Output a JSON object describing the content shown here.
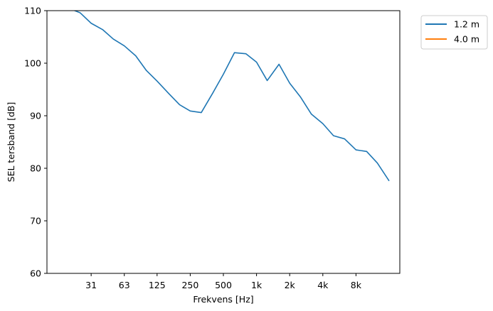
{
  "chart_data": {
    "type": "line",
    "xlabel": "Frekvens [Hz]",
    "ylabel": "SEL tersband [dB]",
    "x_scale": "log",
    "xlim": [
      12.5,
      20000
    ],
    "ylim": [
      60,
      110
    ],
    "x_ticks": [
      {
        "value": 31.5,
        "label": "31"
      },
      {
        "value": 63,
        "label": "63"
      },
      {
        "value": 125,
        "label": "125"
      },
      {
        "value": 250,
        "label": "250"
      },
      {
        "value": 500,
        "label": "500"
      },
      {
        "value": 1000,
        "label": "1k"
      },
      {
        "value": 2000,
        "label": "2k"
      },
      {
        "value": 4000,
        "label": "4k"
      },
      {
        "value": 8000,
        "label": "8k"
      }
    ],
    "y_ticks": [
      60,
      70,
      80,
      90,
      100,
      110
    ],
    "grid": false,
    "legend_position": "outside-top-right",
    "series": [
      {
        "name": "1.2 m",
        "color": "#1f77b4",
        "x": [
          20,
          25,
          31.5,
          40,
          50,
          63,
          80,
          100,
          125,
          160,
          200,
          250,
          315,
          400,
          500,
          630,
          800,
          1000,
          1250,
          1600,
          2000,
          2500,
          3150,
          4000,
          5000,
          6300,
          8000,
          10000,
          12500,
          16000
        ],
        "y": [
          110.4,
          109.6,
          107.6,
          106.4,
          104.6,
          103.3,
          101.4,
          98.6,
          96.6,
          94.2,
          92.1,
          90.9,
          90.6,
          94.3,
          97.9,
          102.0,
          101.8,
          100.2,
          96.7,
          99.8,
          96.2,
          93.6,
          90.3,
          88.5,
          86.2,
          85.6,
          83.5,
          83.2,
          81.0,
          77.6
        ]
      },
      {
        "name": "4.0 m",
        "color": "#ff7f0e",
        "x": [],
        "y": []
      }
    ]
  }
}
